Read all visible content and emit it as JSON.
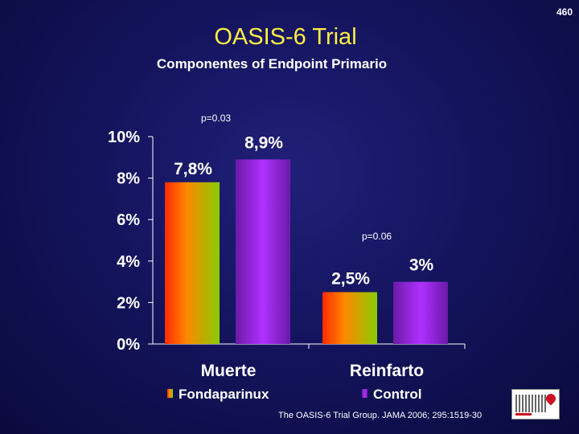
{
  "slide_number": "460",
  "title": "OASIS-6 Trial",
  "subtitle": "Componentes of Endpoint Primario",
  "citation": "The OASIS-6 Trial Group. JAMA 2006; 295:1519-30",
  "chart_data": {
    "type": "bar",
    "categories": [
      "Muerte",
      "Reinfarto"
    ],
    "series": [
      {
        "name": "Fondaparinux",
        "values": [
          7.8,
          2.5
        ],
        "labels": [
          "7,8%",
          "2,5%"
        ]
      },
      {
        "name": "Control",
        "values": [
          8.9,
          3.0
        ],
        "labels": [
          "8,9%",
          "3%"
        ]
      }
    ],
    "yticks": [
      0,
      2,
      4,
      6,
      8,
      10
    ],
    "ytick_labels": [
      "0%",
      "2%",
      "4%",
      "6%",
      "8%",
      "10%"
    ],
    "ylim": [
      0,
      10
    ],
    "annotations": [
      "p=0.03",
      "p=0.06"
    ],
    "legend": "bottom",
    "colors": {
      "fondaparinux_gradient": [
        "#ff2a00",
        "#ff8800",
        "#88cc00"
      ],
      "control_gradient": [
        "#6a1aa8",
        "#b030ff",
        "#6a1aa8"
      ]
    }
  }
}
